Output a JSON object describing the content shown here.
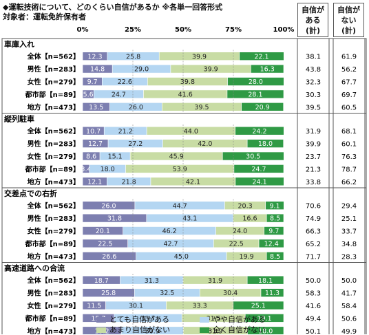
{
  "chart_data": {
    "type": "bar",
    "stacked": true,
    "orientation": "horizontal",
    "title": "◆運転技術について、どのくらい自信があるか ※各単一回答形式",
    "subtitle": "対象者：運転免許保有者",
    "xticks": [
      "0%",
      "25%",
      "50%",
      "75%",
      "100%"
    ],
    "xlim": [
      0,
      100
    ],
    "legend": [
      "とても自信がある",
      "やや自信がある",
      "あまり自信がない",
      "全く自信がない"
    ],
    "legend_position": "bottom",
    "colors": [
      "#7d7fb0",
      "#b4d6f2",
      "#c8dca4",
      "#2f9a45"
    ],
    "summary_headers": [
      [
        "自信が",
        "ある",
        "(計)"
      ],
      [
        "自信が",
        "ない",
        "(計)"
      ]
    ],
    "groups": [
      {
        "name": "車庫入れ",
        "rows": [
          {
            "label": "全体【n=562】",
            "values": [
              12.3,
              25.8,
              39.9,
              22.1
            ],
            "labels": [
              "12.3",
              "25.8",
              "39.9",
              "22.1"
            ],
            "sum_yes": "38.1",
            "sum_no": "61.9"
          },
          {
            "label": "男性【n=283】",
            "values": [
              14.8,
              29.0,
              39.9,
              16.3
            ],
            "labels": [
              "14.8",
              "29.0",
              "39.9",
              "16.3"
            ],
            "sum_yes": "43.8",
            "sum_no": "56.2"
          },
          {
            "label": "女性【n=279】",
            "values": [
              9.7,
              22.6,
              39.8,
              28.0
            ],
            "labels": [
              "9.7",
              "22.6",
              "39.8",
              "28.0"
            ],
            "sum_yes": "32.3",
            "sum_no": "67.7"
          },
          {
            "label": "都市部【n=89】",
            "values": [
              5.6,
              24.7,
              41.6,
              28.1
            ],
            "labels": [
              "5.6",
              "24.7",
              "41.6",
              "28.1"
            ],
            "sum_yes": "30.3",
            "sum_no": "69.7"
          },
          {
            "label": "地方【n=473】",
            "values": [
              13.5,
              26.0,
              39.5,
              20.9
            ],
            "labels": [
              "13.5",
              "26.0",
              "39.5",
              "20.9"
            ],
            "sum_yes": "39.5",
            "sum_no": "60.5"
          }
        ]
      },
      {
        "name": "縦列駐車",
        "rows": [
          {
            "label": "全体【n=562】",
            "values": [
              10.7,
              21.2,
              44.0,
              24.2
            ],
            "labels": [
              "10.7",
              "21.2",
              "44.0",
              "24.2"
            ],
            "sum_yes": "31.9",
            "sum_no": "68.1"
          },
          {
            "label": "男性【n=283】",
            "values": [
              12.7,
              27.2,
              42.0,
              18.0
            ],
            "labels": [
              "12.7",
              "27.2",
              "42.0",
              "18.0"
            ],
            "sum_yes": "39.9",
            "sum_no": "60.1"
          },
          {
            "label": "女性【n=279】",
            "values": [
              8.6,
              15.1,
              45.9,
              30.5
            ],
            "labels": [
              "8.6",
              "15.1",
              "45.9",
              "30.5"
            ],
            "sum_yes": "23.7",
            "sum_no": "76.3"
          },
          {
            "label": "都市部【n=89】",
            "values": [
              3.4,
              18.0,
              53.9,
              24.7
            ],
            "labels": [
              "3.4",
              "18.0",
              "53.9",
              "24.7"
            ],
            "sum_yes": "21.3",
            "sum_no": "78.7"
          },
          {
            "label": "地方【n=473】",
            "values": [
              12.1,
              21.8,
              42.1,
              24.1
            ],
            "labels": [
              "12.1",
              "21.8",
              "42.1",
              "24.1"
            ],
            "sum_yes": "33.8",
            "sum_no": "66.2"
          }
        ]
      },
      {
        "name": "交差点での右折",
        "rows": [
          {
            "label": "全体【n=562】",
            "values": [
              26.0,
              44.7,
              20.3,
              9.1
            ],
            "labels": [
              "26.0",
              "44.7",
              "20.3",
              "9.1"
            ],
            "sum_yes": "70.6",
            "sum_no": "29.4"
          },
          {
            "label": "男性【n=283】",
            "values": [
              31.8,
              43.1,
              16.6,
              8.5
            ],
            "labels": [
              "31.8",
              "43.1",
              "16.6",
              "8.5"
            ],
            "sum_yes": "74.9",
            "sum_no": "25.1"
          },
          {
            "label": "女性【n=279】",
            "values": [
              20.1,
              46.2,
              24.0,
              9.7
            ],
            "labels": [
              "20.1",
              "46.2",
              "24.0",
              "9.7"
            ],
            "sum_yes": "66.3",
            "sum_no": "33.7"
          },
          {
            "label": "都市部【n=89】",
            "values": [
              22.5,
              42.7,
              22.5,
              12.4
            ],
            "labels": [
              "22.5",
              "42.7",
              "22.5",
              "12.4"
            ],
            "sum_yes": "65.2",
            "sum_no": "34.8"
          },
          {
            "label": "地方【n=473】",
            "values": [
              26.6,
              45.0,
              19.9,
              8.5
            ],
            "labels": [
              "26.6",
              "45.0",
              "19.9",
              "8.5"
            ],
            "sum_yes": "71.7",
            "sum_no": "28.3"
          }
        ]
      },
      {
        "name": "高速道路への合流",
        "rows": [
          {
            "label": "全体【n=562】",
            "values": [
              18.7,
              31.3,
              31.9,
              18.1
            ],
            "labels": [
              "18.7",
              "31.3",
              "31.9",
              "18.1"
            ],
            "sum_yes": "50.0",
            "sum_no": "50.0"
          },
          {
            "label": "男性【n=283】",
            "values": [
              25.8,
              32.5,
              30.4,
              11.3
            ],
            "labels": [
              "25.8",
              "32.5",
              "30.4",
              "11.3"
            ],
            "sum_yes": "58.3",
            "sum_no": "41.7"
          },
          {
            "label": "女性【n=279】",
            "values": [
              11.5,
              30.1,
              33.3,
              25.1
            ],
            "labels": [
              "11.5",
              "30.1",
              "33.3",
              "25.1"
            ],
            "sum_yes": "41.6",
            "sum_no": "58.4"
          },
          {
            "label": "都市部【n=89】",
            "values": [
              15.7,
              33.7,
              31.5,
              19.1
            ],
            "labels": [
              "15.7",
              "33.7",
              "31.5",
              "19.1"
            ],
            "sum_yes": "49.4",
            "sum_no": "50.6"
          },
          {
            "label": "地方【n=473】",
            "values": [
              19.2,
              30.9,
              31.9,
              18.0
            ],
            "labels": [
              "19.2",
              "30.9",
              "31.9",
              "18.0"
            ],
            "sum_yes": "50.1",
            "sum_no": "49.9"
          }
        ]
      }
    ]
  }
}
